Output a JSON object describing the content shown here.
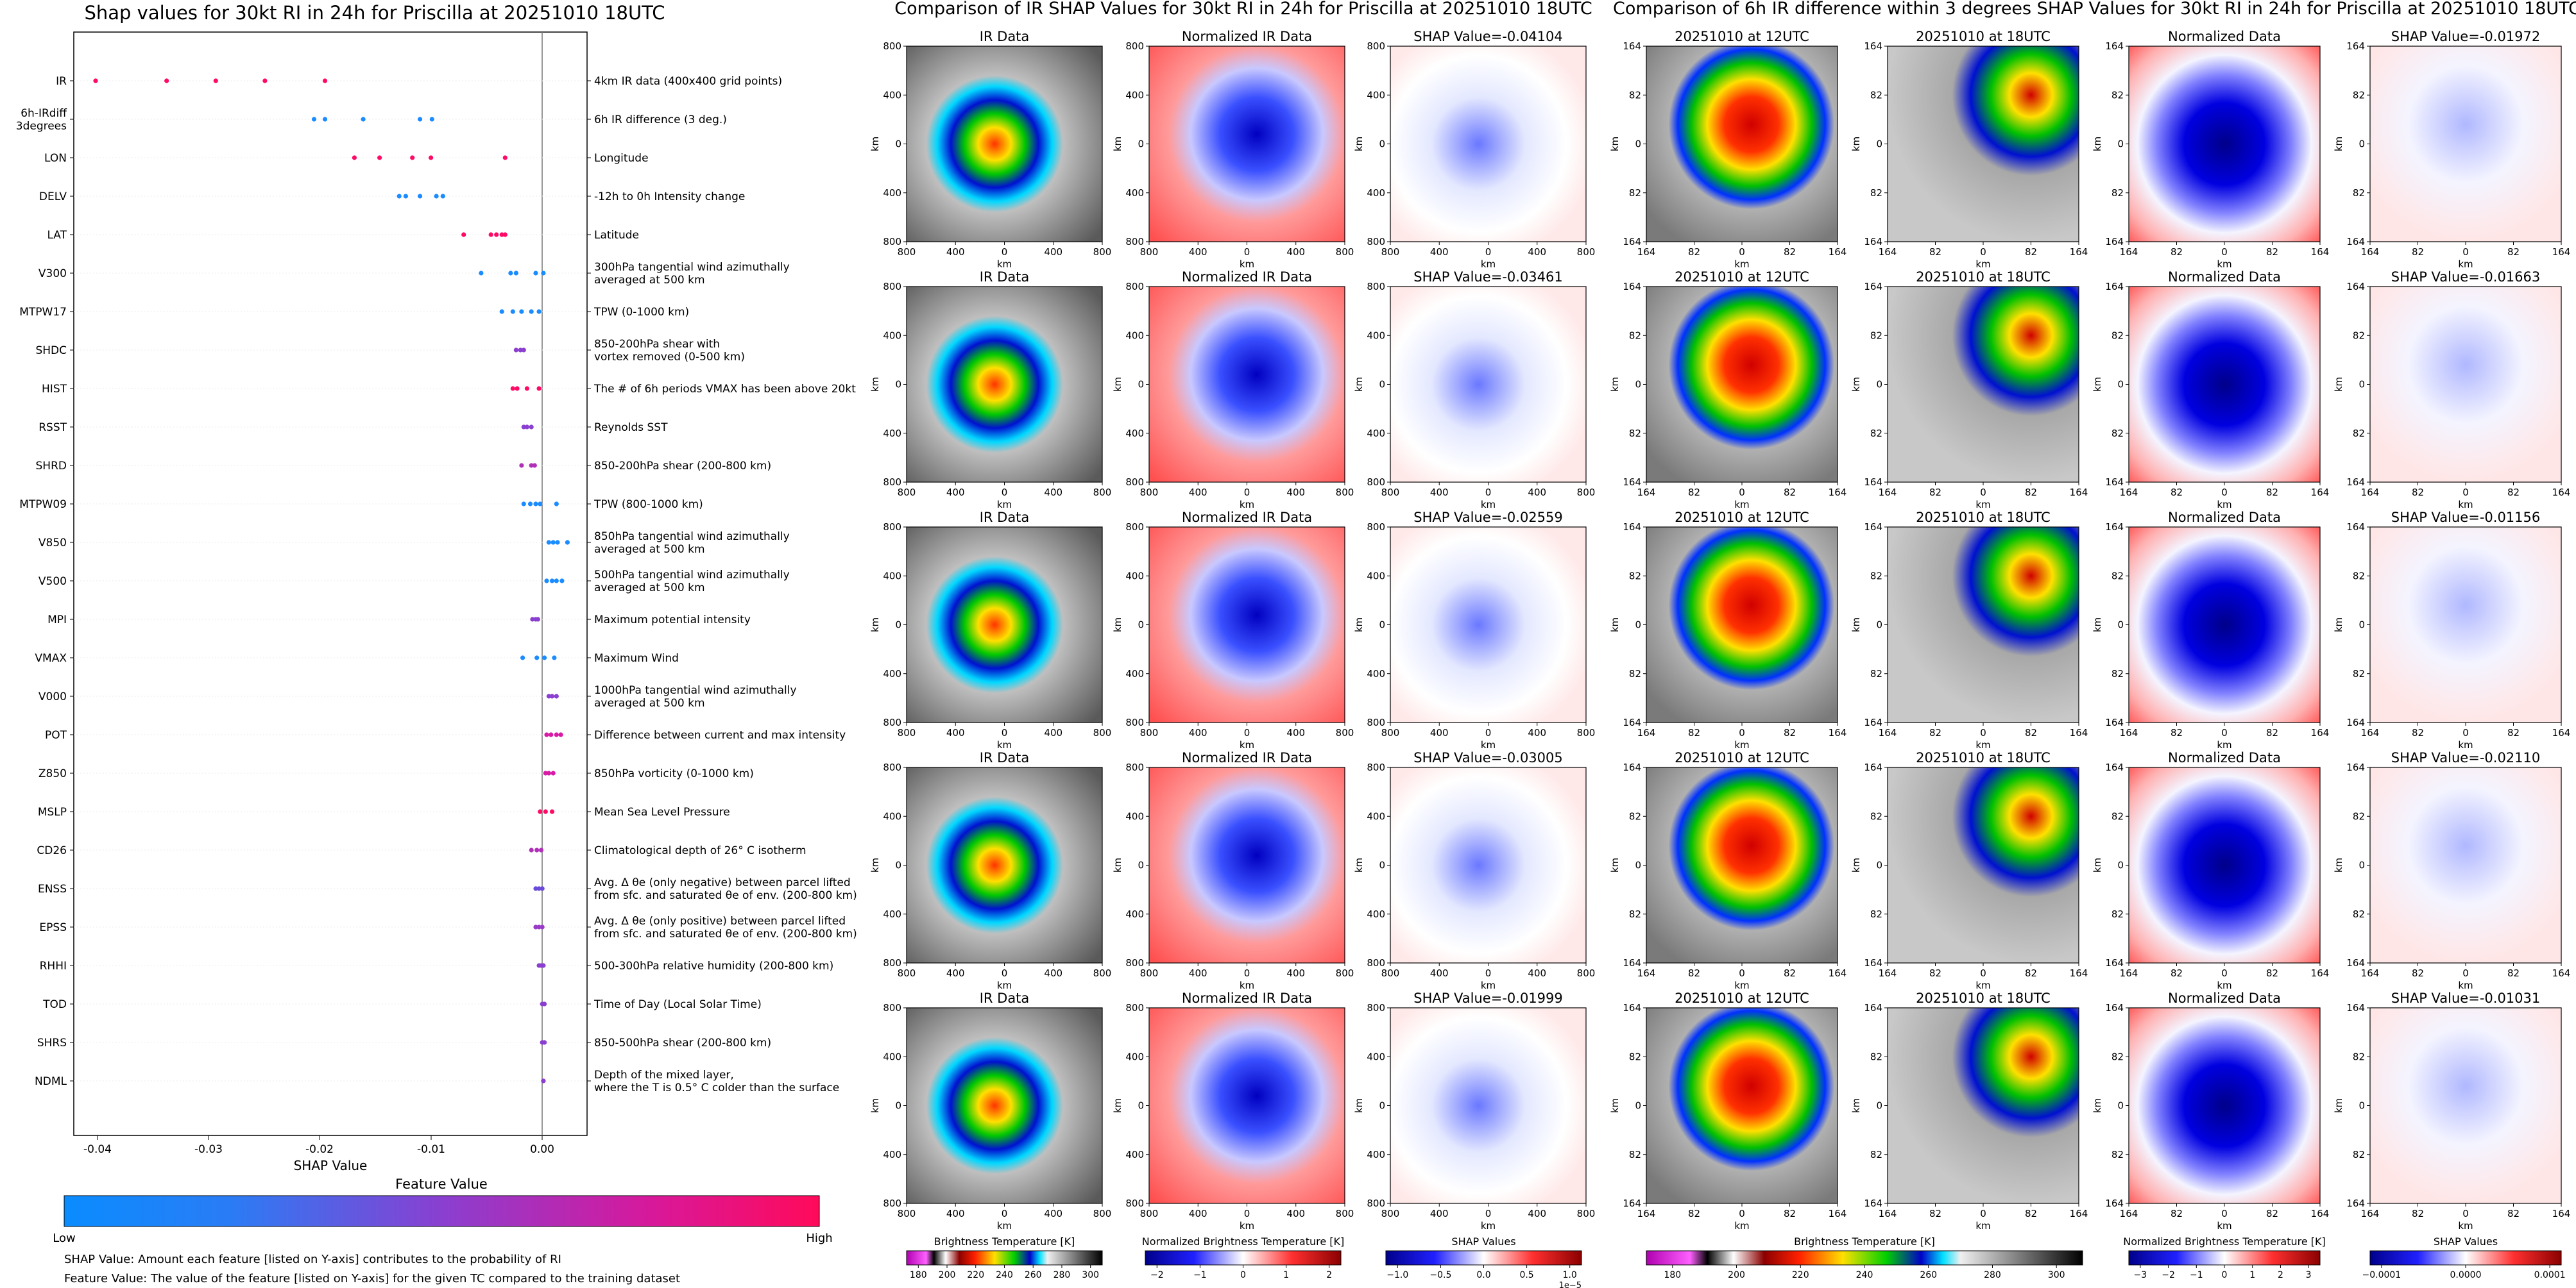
{
  "shap_panel": {
    "title": "Shap values for 30kt RI in 24h for Priscilla at 20251010 18UTC",
    "xlabel": "SHAP Value",
    "xticks": [
      "-0.04",
      "-0.03",
      "-0.02",
      "-0.01",
      "0.00"
    ],
    "colorbar_title": "Feature Value",
    "colorbar_low": "Low",
    "colorbar_high": "High",
    "note_shap": "SHAP Value: Amount each feature [listed on Y-axis] contributes to the probability of RI",
    "note_feature": "Feature Value: The value of the feature [listed on Y-axis] for the given TC compared to the training dataset"
  },
  "chart_data": {
    "type": "scatter",
    "title": "Shap values for 30kt RI in 24h for Priscilla at 20251010 18UTC",
    "xlabel": "SHAP Value",
    "xlim": [
      -0.043,
      0.004
    ],
    "features": [
      {
        "name": "IR",
        "desc": [
          "4km IR data (400x400 grid points)"
        ],
        "color": "#ff0a66",
        "points": [
          -0.041,
          -0.0345,
          -0.03,
          -0.0255,
          -0.02
        ]
      },
      {
        "name": "6h-IRdiff\n3degrees",
        "desc": [
          "6h IR difference (3 deg.)"
        ],
        "color": "#1a8cff",
        "points": [
          -0.021,
          -0.02,
          -0.0165,
          -0.0113,
          -0.0102
        ]
      },
      {
        "name": "LON",
        "desc": [
          "Longitude"
        ],
        "color": "#ff0a66",
        "points": [
          -0.0173,
          -0.015,
          -0.012,
          -0.0103,
          -0.0035
        ]
      },
      {
        "name": "DELV",
        "desc": [
          "-12h to 0h Intensity change"
        ],
        "color": "#1a8cff",
        "points": [
          -0.0132,
          -0.0126,
          -0.0113,
          -0.0098,
          -0.0092
        ]
      },
      {
        "name": "LAT",
        "desc": [
          "Latitude"
        ],
        "color": "#ff0a66",
        "points": [
          -0.0073,
          -0.0048,
          -0.0043,
          -0.0038,
          -0.0035
        ]
      },
      {
        "name": "V300",
        "desc": [
          "300hPa tangential wind azimuthally",
          "averaged at 500 km"
        ],
        "color": "#1a8cff",
        "points": [
          -0.0057,
          -0.003,
          -0.0025,
          -0.0007,
          0.0
        ]
      },
      {
        "name": "MTPW17",
        "desc": [
          "TPW (0-1000 km)"
        ],
        "color": "#1a8cff",
        "points": [
          -0.0038,
          -0.0028,
          -0.002,
          -0.0011,
          -0.0004
        ]
      },
      {
        "name": "SHDC",
        "desc": [
          "850-200hPa shear with",
          "vortex removed (0-500 km)"
        ],
        "color": "#8a3fd0",
        "points": [
          -0.0025,
          -0.0021,
          -0.0018
        ]
      },
      {
        "name": "HIST",
        "desc": [
          "The # of 6h periods VMAX has been above 20kt"
        ],
        "color": "#ff0a66",
        "points": [
          -0.0028,
          -0.0024,
          -0.0015,
          -0.0004
        ]
      },
      {
        "name": "RSST",
        "desc": [
          "Reynolds SST"
        ],
        "color": "#8a3fd0",
        "points": [
          -0.0018,
          -0.0015,
          -0.0011
        ]
      },
      {
        "name": "SHRD",
        "desc": [
          "850-200hPa shear (200-800 km)"
        ],
        "color": "#b030b8",
        "points": [
          -0.002,
          -0.0011,
          -0.0008
        ]
      },
      {
        "name": "MTPW09",
        "desc": [
          "TPW (800-1000 km)"
        ],
        "color": "#1a8cff",
        "points": [
          -0.0018,
          -0.0012,
          -0.0007,
          -0.0003,
          0.0012
        ]
      },
      {
        "name": "V850",
        "desc": [
          "850hPa tangential wind azimuthally",
          "averaged at 500 km"
        ],
        "color": "#1a8cff",
        "points": [
          0.0005,
          0.0009,
          0.0013,
          0.0022
        ]
      },
      {
        "name": "V500",
        "desc": [
          "500hPa tangential wind azimuthally",
          "averaged at 500 km"
        ],
        "color": "#1a8cff",
        "points": [
          0.0003,
          0.0008,
          0.0012,
          0.0017
        ]
      },
      {
        "name": "MPI",
        "desc": [
          "Maximum potential intensity"
        ],
        "color": "#8a3fd0",
        "points": [
          -0.001,
          -0.0007,
          -0.0005
        ]
      },
      {
        "name": "VMAX",
        "desc": [
          "Maximum Wind"
        ],
        "color": "#1a8cff",
        "points": [
          -0.0019,
          -0.0006,
          0.0001,
          0.001
        ]
      },
      {
        "name": "V000",
        "desc": [
          "1000hPa tangential wind azimuthally",
          "averaged at 500 km"
        ],
        "color": "#8a3fd0",
        "points": [
          0.0005,
          0.0008,
          0.0012
        ]
      },
      {
        "name": "POT",
        "desc": [
          "Difference between current and max intensity"
        ],
        "color": "#d81aa6",
        "points": [
          0.0003,
          0.0007,
          0.0012,
          0.0016
        ]
      },
      {
        "name": "Z850",
        "desc": [
          "850hPa vorticity (0-1000 km)"
        ],
        "color": "#d81aa6",
        "points": [
          0.0002,
          0.0005,
          0.0009
        ]
      },
      {
        "name": "MSLP",
        "desc": [
          "Mean Sea Level Pressure"
        ],
        "color": "#ff0a66",
        "points": [
          -0.0003,
          0.0002,
          0.0008
        ]
      },
      {
        "name": "CD26",
        "desc": [
          "Climatological depth of 26° C isotherm"
        ],
        "color": "#b030b8",
        "points": [
          -0.0011,
          -0.0006,
          -0.0002
        ]
      },
      {
        "name": "ENSS",
        "desc": [
          "Avg. Δ θe (only negative) between parcel lifted",
          "from sfc. and saturated θe of env. (200-800 km)"
        ],
        "color": "#6a4ad8",
        "points": [
          -0.0007,
          -0.0004,
          -0.0001
        ]
      },
      {
        "name": "EPSS",
        "desc": [
          "Avg. Δ θe (only positive) between parcel lifted",
          "from sfc. and saturated θe of env. (200-800 km)"
        ],
        "color": "#9a3ac8",
        "points": [
          -0.0007,
          -0.0004,
          -0.0001
        ]
      },
      {
        "name": "RHHI",
        "desc": [
          "500-300hPa relative humidity (200-800 km)"
        ],
        "color": "#8a3fd0",
        "points": [
          -0.0004,
          -0.0002,
          0.0
        ]
      },
      {
        "name": "TOD",
        "desc": [
          "Time of Day (Local Solar Time)"
        ],
        "color": "#8a3fd0",
        "points": [
          -0.0001,
          0.0001
        ]
      },
      {
        "name": "SHRS",
        "desc": [
          "850-500hPa shear (200-800 km)"
        ],
        "color": "#8a3fd0",
        "points": [
          -0.0001,
          0.0001
        ]
      },
      {
        "name": "NDML",
        "desc": [
          "Depth of the mixed layer,",
          "where the T is 0.5° C colder than the surface"
        ],
        "color": "#8a3fd0",
        "points": [
          0.0,
          0.0
        ]
      }
    ]
  },
  "ir_section": {
    "title": "Comparison of IR SHAP Values for 30kt RI in 24h for Priscilla at 20251010 18UTC",
    "col_titles": [
      "IR Data",
      "Normalized IR Data"
    ],
    "shap_titles": [
      "SHAP Value=-0.04104",
      "SHAP Value=-0.03461",
      "SHAP Value=-0.02559",
      "SHAP Value=-0.03005",
      "SHAP Value=-0.01999"
    ],
    "xticks": [
      "800",
      "400",
      "0",
      "400",
      "800"
    ],
    "yticks": [
      "800",
      "400",
      "0",
      "400",
      "800"
    ],
    "axis_unit": "km",
    "colorbars": [
      {
        "label": "Brightness Temperature [K]",
        "ticks": [
          "180",
          "200",
          "220",
          "240",
          "260",
          "280",
          "300"
        ]
      },
      {
        "label": "Normalized Brightness Temperature [K]",
        "ticks": [
          "−2",
          "−1",
          "0",
          "1",
          "2"
        ]
      },
      {
        "label": "SHAP Values",
        "ticks": [
          "−1.0",
          "−0.5",
          "0.0",
          "0.5",
          "1.0"
        ],
        "exponent": "1e−5"
      }
    ]
  },
  "diff_section": {
    "title": "Comparison of 6h IR difference within 3 degrees SHAP Values for 30kt RI in 24h for Priscilla at 20251010 18UTC",
    "col_titles": [
      "20251010 at 12UTC",
      "20251010 at 18UTC",
      "Normalized Data"
    ],
    "shap_titles": [
      "SHAP Value=-0.01972",
      "SHAP Value=-0.01663",
      "SHAP Value=-0.01156",
      "SHAP Value=-0.02110",
      "SHAP Value=-0.01031"
    ],
    "xticks": [
      "164",
      "82",
      "0",
      "82",
      "164"
    ],
    "yticks": [
      "164",
      "82",
      "0",
      "82",
      "164"
    ],
    "axis_unit": "km",
    "colorbars": [
      {
        "label": "Brightness Temperature [K]",
        "ticks": [
          "180",
          "200",
          "220",
          "240",
          "260",
          "280",
          "300"
        ]
      },
      {
        "label": "Normalized Brightness Temperature [K]",
        "ticks": [
          "−3",
          "−2",
          "−1",
          "0",
          "1",
          "2",
          "3"
        ]
      },
      {
        "label": "SHAP Values",
        "ticks": [
          "−0.0001",
          "0.0000",
          "0.0001"
        ]
      }
    ]
  }
}
